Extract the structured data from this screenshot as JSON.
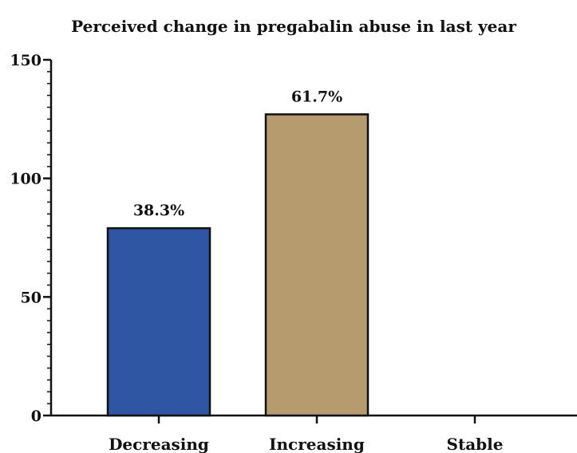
{
  "chart_data": {
    "type": "bar",
    "title": "Perceived change in pregabalin abuse in last year",
    "categories": [
      "Decreasing",
      "Increasing",
      "Stable"
    ],
    "values": [
      79,
      127,
      0
    ],
    "data_labels": [
      "38.3%",
      "61.7%",
      ""
    ],
    "colors": [
      "#2E56A3",
      "#B59B6E",
      "#888888"
    ],
    "ylim": [
      0,
      150
    ],
    "yticks": [
      0,
      50,
      100,
      150
    ],
    "yticks_minor_step": 5,
    "xlabel": "",
    "ylabel": "",
    "grid": false,
    "legend": "none"
  }
}
